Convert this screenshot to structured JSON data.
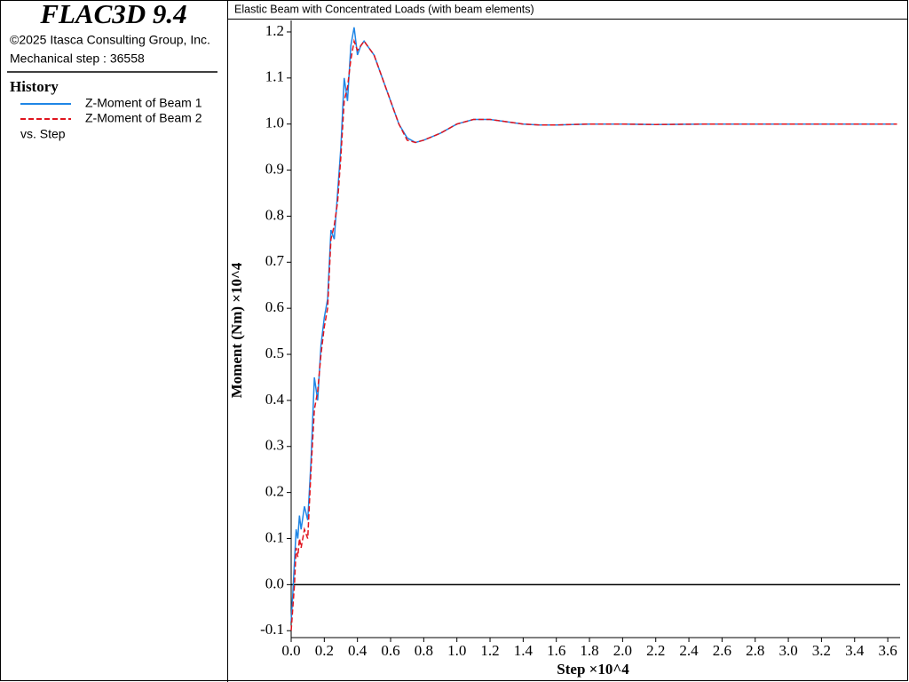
{
  "app": {
    "title": "FLAC3D 9.4",
    "copyright": "©2025 Itasca Consulting Group, Inc.",
    "status": "Mechanical step : 36558",
    "history_heading": "History",
    "x_variable": "vs. Step"
  },
  "chart_data": {
    "type": "line",
    "title": "Elastic Beam with Concentrated Loads (with beam elements)",
    "x_label": "Step ×10^4",
    "y_label": "Moment (Nm) ×10^4",
    "x": [
      0,
      0.01,
      0.02,
      0.03,
      0.04,
      0.05,
      0.06,
      0.08,
      0.1,
      0.12,
      0.14,
      0.16,
      0.18,
      0.2,
      0.22,
      0.24,
      0.26,
      0.28,
      0.3,
      0.32,
      0.34,
      0.36,
      0.38,
      0.4,
      0.42,
      0.44,
      0.46,
      0.5,
      0.55,
      0.6,
      0.65,
      0.7,
      0.75,
      0.8,
      0.9,
      1.0,
      1.1,
      1.2,
      1.3,
      1.4,
      1.5,
      1.6,
      1.8,
      2.0,
      2.2,
      2.5,
      3.0,
      3.6558
    ],
    "series": [
      {
        "name": "Z-Moment of Beam 1",
        "color": "#1f86e6",
        "line_style": "solid",
        "values": [
          -0.08,
          -0.02,
          0.05,
          0.12,
          0.1,
          0.15,
          0.12,
          0.17,
          0.14,
          0.27,
          0.45,
          0.4,
          0.52,
          0.58,
          0.62,
          0.77,
          0.75,
          0.85,
          0.95,
          1.1,
          1.05,
          1.17,
          1.21,
          1.15,
          1.17,
          1.18,
          1.17,
          1.15,
          1.1,
          1.05,
          1.0,
          0.97,
          0.96,
          0.965,
          0.98,
          1.0,
          1.01,
          1.01,
          1.005,
          1.0,
          0.998,
          0.998,
          1.0,
          1.0,
          0.999,
          1.0,
          1.0,
          1.0
        ]
      },
      {
        "name": "Z-Moment of Beam 2",
        "color": "#e0141e",
        "line_style": "dashed",
        "values": [
          -0.1,
          -0.05,
          0.0,
          0.08,
          0.06,
          0.1,
          0.08,
          0.12,
          0.1,
          0.25,
          0.38,
          0.42,
          0.5,
          0.56,
          0.6,
          0.75,
          0.78,
          0.83,
          0.93,
          1.05,
          1.08,
          1.14,
          1.18,
          1.16,
          1.17,
          1.18,
          1.17,
          1.15,
          1.1,
          1.05,
          1.0,
          0.965,
          0.96,
          0.965,
          0.98,
          1.0,
          1.01,
          1.01,
          1.005,
          1.0,
          0.998,
          0.998,
          1.0,
          1.0,
          0.999,
          1.0,
          1.0,
          1.0
        ]
      }
    ],
    "xlim": [
      0,
      3.6558
    ],
    "xticks": [
      {
        "value": 0,
        "label": "0.0"
      },
      0.2,
      0.4,
      0.6,
      0.8,
      {
        "value": 1,
        "label": "1.0"
      },
      1.2,
      1.4,
      1.6,
      1.8,
      {
        "value": 2,
        "label": "2.0"
      },
      2.2,
      2.4,
      2.6,
      2.8,
      {
        "value": 3,
        "label": "3.0"
      },
      3.2,
      3.4,
      3.6
    ],
    "ylim": [
      -0.115,
      1.225
    ],
    "yticks": [
      -0.1,
      {
        "value": 0,
        "label": "0.0"
      },
      0.1,
      0.2,
      0.3,
      0.4,
      0.5,
      0.6,
      0.7,
      0.8,
      0.9,
      {
        "value": 1,
        "label": "1.0"
      },
      1.1,
      1.2
    ],
    "grid": false
  }
}
